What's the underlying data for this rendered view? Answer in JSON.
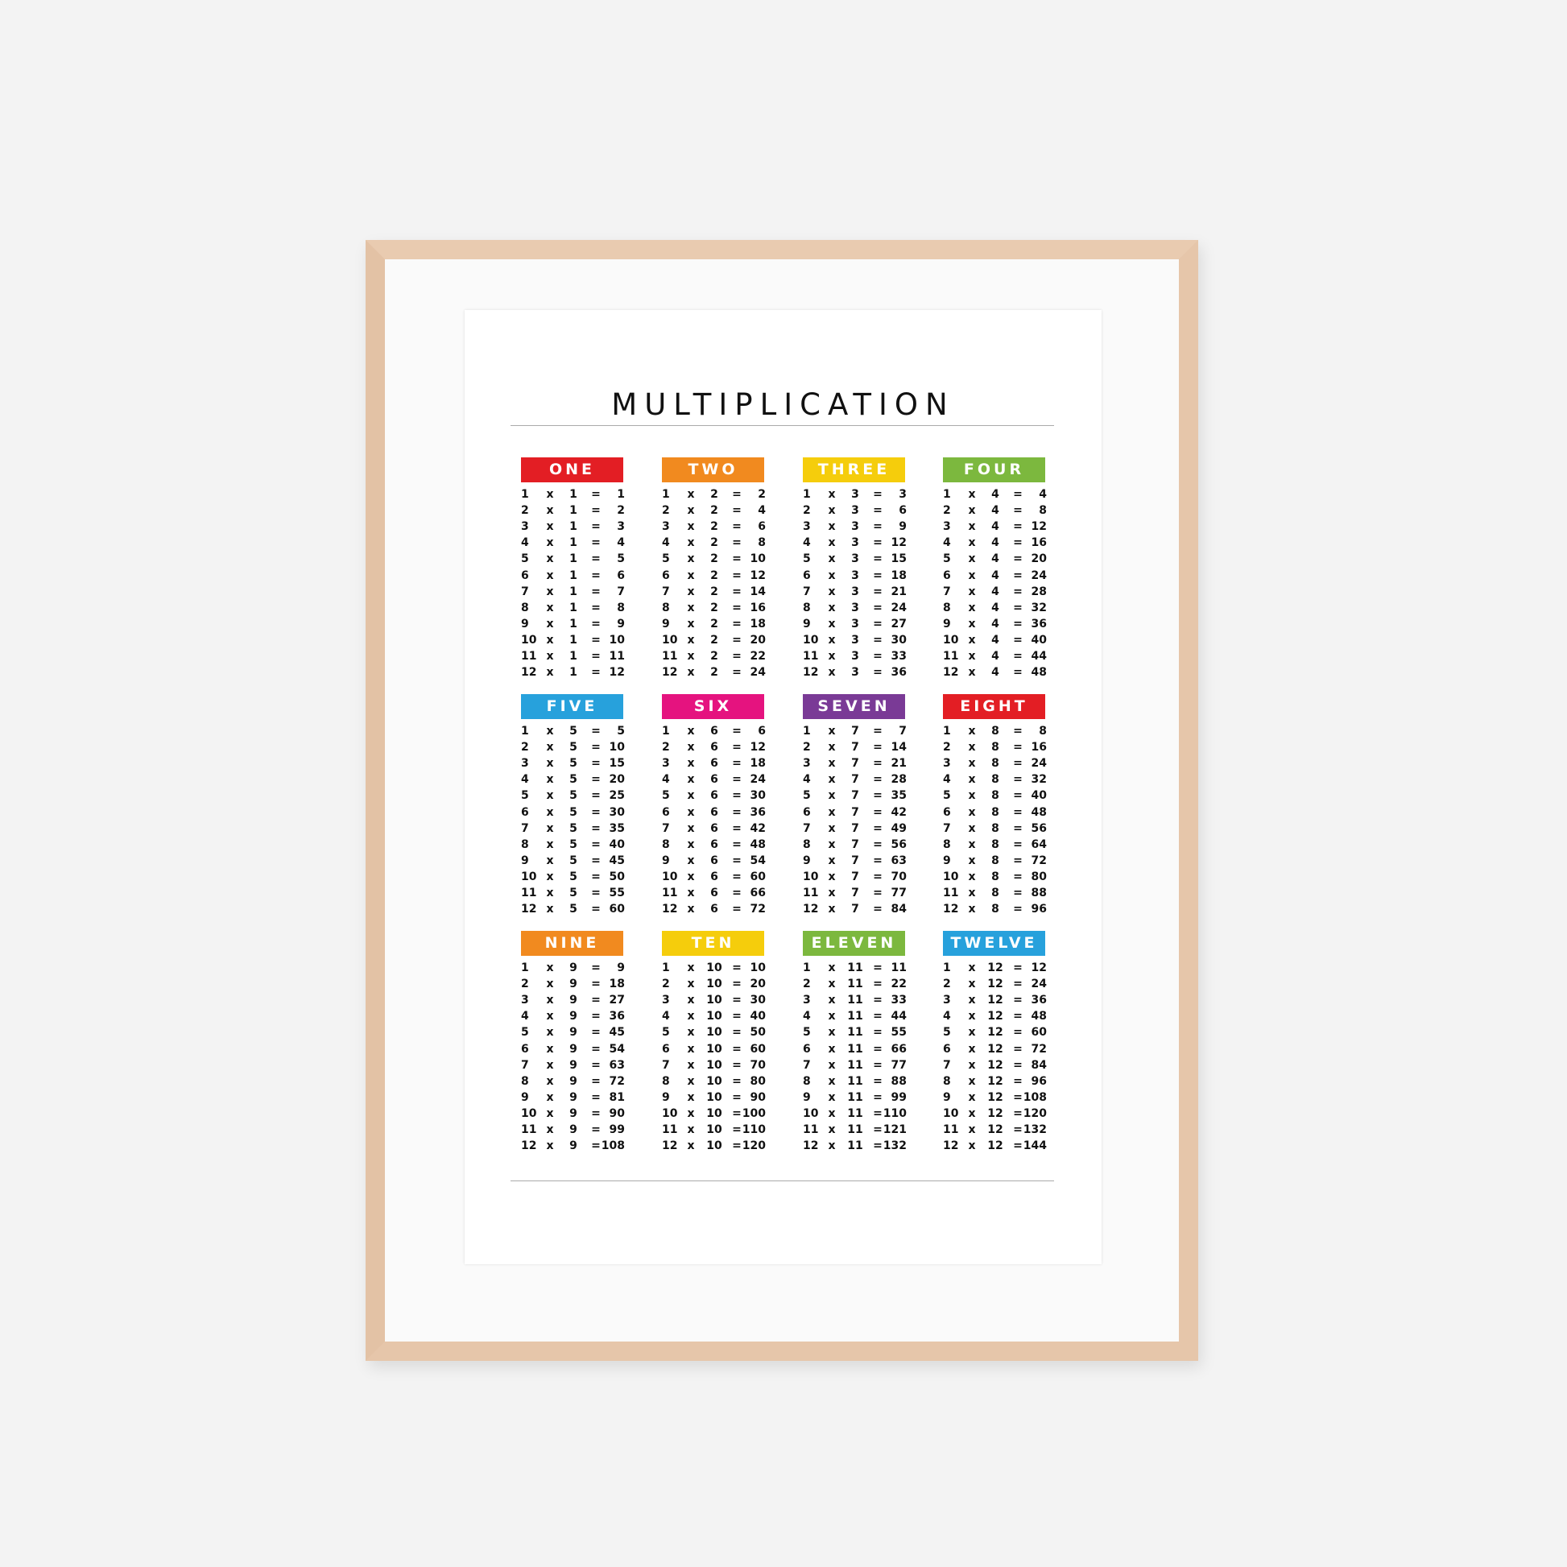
{
  "title": "MULTIPLICATION",
  "tables": [
    {
      "label": "ONE",
      "color": "#e31e24",
      "rows": [
        [
          1,
          "x",
          1,
          "=",
          1
        ],
        [
          2,
          "x",
          1,
          "=",
          2
        ],
        [
          3,
          "x",
          1,
          "=",
          3
        ],
        [
          4,
          "x",
          1,
          "=",
          4
        ],
        [
          5,
          "x",
          1,
          "=",
          5
        ],
        [
          6,
          "x",
          1,
          "=",
          6
        ],
        [
          7,
          "x",
          1,
          "=",
          7
        ],
        [
          8,
          "x",
          1,
          "=",
          8
        ],
        [
          9,
          "x",
          1,
          "=",
          9
        ],
        [
          10,
          "x",
          1,
          "=",
          10
        ],
        [
          11,
          "x",
          1,
          "=",
          11
        ],
        [
          12,
          "x",
          1,
          "=",
          12
        ]
      ]
    },
    {
      "label": "TWO",
      "color": "#f18a1f",
      "rows": [
        [
          1,
          "x",
          2,
          "=",
          2
        ],
        [
          2,
          "x",
          2,
          "=",
          4
        ],
        [
          3,
          "x",
          2,
          "=",
          6
        ],
        [
          4,
          "x",
          2,
          "=",
          8
        ],
        [
          5,
          "x",
          2,
          "=",
          10
        ],
        [
          6,
          "x",
          2,
          "=",
          12
        ],
        [
          7,
          "x",
          2,
          "=",
          14
        ],
        [
          8,
          "x",
          2,
          "=",
          16
        ],
        [
          9,
          "x",
          2,
          "=",
          18
        ],
        [
          10,
          "x",
          2,
          "=",
          20
        ],
        [
          11,
          "x",
          2,
          "=",
          22
        ],
        [
          12,
          "x",
          2,
          "=",
          24
        ]
      ]
    },
    {
      "label": "THREE",
      "color": "#f5cd0c",
      "rows": [
        [
          1,
          "x",
          3,
          "=",
          3
        ],
        [
          2,
          "x",
          3,
          "=",
          6
        ],
        [
          3,
          "x",
          3,
          "=",
          9
        ],
        [
          4,
          "x",
          3,
          "=",
          12
        ],
        [
          5,
          "x",
          3,
          "=",
          15
        ],
        [
          6,
          "x",
          3,
          "=",
          18
        ],
        [
          7,
          "x",
          3,
          "=",
          21
        ],
        [
          8,
          "x",
          3,
          "=",
          24
        ],
        [
          9,
          "x",
          3,
          "=",
          27
        ],
        [
          10,
          "x",
          3,
          "=",
          30
        ],
        [
          11,
          "x",
          3,
          "=",
          33
        ],
        [
          12,
          "x",
          3,
          "=",
          36
        ]
      ]
    },
    {
      "label": "FOUR",
      "color": "#7cb83e",
      "rows": [
        [
          1,
          "x",
          4,
          "=",
          4
        ],
        [
          2,
          "x",
          4,
          "=",
          8
        ],
        [
          3,
          "x",
          4,
          "=",
          12
        ],
        [
          4,
          "x",
          4,
          "=",
          16
        ],
        [
          5,
          "x",
          4,
          "=",
          20
        ],
        [
          6,
          "x",
          4,
          "=",
          24
        ],
        [
          7,
          "x",
          4,
          "=",
          28
        ],
        [
          8,
          "x",
          4,
          "=",
          32
        ],
        [
          9,
          "x",
          4,
          "=",
          36
        ],
        [
          10,
          "x",
          4,
          "=",
          40
        ],
        [
          11,
          "x",
          4,
          "=",
          44
        ],
        [
          12,
          "x",
          4,
          "=",
          48
        ]
      ]
    },
    {
      "label": "FIVE",
      "color": "#27a1dc",
      "rows": [
        [
          1,
          "x",
          5,
          "=",
          5
        ],
        [
          2,
          "x",
          5,
          "=",
          10
        ],
        [
          3,
          "x",
          5,
          "=",
          15
        ],
        [
          4,
          "x",
          5,
          "=",
          20
        ],
        [
          5,
          "x",
          5,
          "=",
          25
        ],
        [
          6,
          "x",
          5,
          "=",
          30
        ],
        [
          7,
          "x",
          5,
          "=",
          35
        ],
        [
          8,
          "x",
          5,
          "=",
          40
        ],
        [
          9,
          "x",
          5,
          "=",
          45
        ],
        [
          10,
          "x",
          5,
          "=",
          50
        ],
        [
          11,
          "x",
          5,
          "=",
          55
        ],
        [
          12,
          "x",
          5,
          "=",
          60
        ]
      ]
    },
    {
      "label": "SIX",
      "color": "#e5137f",
      "rows": [
        [
          1,
          "x",
          6,
          "=",
          6
        ],
        [
          2,
          "x",
          6,
          "=",
          12
        ],
        [
          3,
          "x",
          6,
          "=",
          18
        ],
        [
          4,
          "x",
          6,
          "=",
          24
        ],
        [
          5,
          "x",
          6,
          "=",
          30
        ],
        [
          6,
          "x",
          6,
          "=",
          36
        ],
        [
          7,
          "x",
          6,
          "=",
          42
        ],
        [
          8,
          "x",
          6,
          "=",
          48
        ],
        [
          9,
          "x",
          6,
          "=",
          54
        ],
        [
          10,
          "x",
          6,
          "=",
          60
        ],
        [
          11,
          "x",
          6,
          "=",
          66
        ],
        [
          12,
          "x",
          6,
          "=",
          72
        ]
      ]
    },
    {
      "label": "SEVEN",
      "color": "#7a3a96",
      "rows": [
        [
          1,
          "x",
          7,
          "=",
          7
        ],
        [
          2,
          "x",
          7,
          "=",
          14
        ],
        [
          3,
          "x",
          7,
          "=",
          21
        ],
        [
          4,
          "x",
          7,
          "=",
          28
        ],
        [
          5,
          "x",
          7,
          "=",
          35
        ],
        [
          6,
          "x",
          7,
          "=",
          42
        ],
        [
          7,
          "x",
          7,
          "=",
          49
        ],
        [
          8,
          "x",
          7,
          "=",
          56
        ],
        [
          9,
          "x",
          7,
          "=",
          63
        ],
        [
          10,
          "x",
          7,
          "=",
          70
        ],
        [
          11,
          "x",
          7,
          "=",
          77
        ],
        [
          12,
          "x",
          7,
          "=",
          84
        ]
      ]
    },
    {
      "label": "EIGHT",
      "color": "#e31e24",
      "rows": [
        [
          1,
          "x",
          8,
          "=",
          8
        ],
        [
          2,
          "x",
          8,
          "=",
          16
        ],
        [
          3,
          "x",
          8,
          "=",
          24
        ],
        [
          4,
          "x",
          8,
          "=",
          32
        ],
        [
          5,
          "x",
          8,
          "=",
          40
        ],
        [
          6,
          "x",
          8,
          "=",
          48
        ],
        [
          7,
          "x",
          8,
          "=",
          56
        ],
        [
          8,
          "x",
          8,
          "=",
          64
        ],
        [
          9,
          "x",
          8,
          "=",
          72
        ],
        [
          10,
          "x",
          8,
          "=",
          80
        ],
        [
          11,
          "x",
          8,
          "=",
          88
        ],
        [
          12,
          "x",
          8,
          "=",
          96
        ]
      ]
    },
    {
      "label": "NINE",
      "color": "#f18a1f",
      "rows": [
        [
          1,
          "x",
          9,
          "=",
          9
        ],
        [
          2,
          "x",
          9,
          "=",
          18
        ],
        [
          3,
          "x",
          9,
          "=",
          27
        ],
        [
          4,
          "x",
          9,
          "=",
          36
        ],
        [
          5,
          "x",
          9,
          "=",
          45
        ],
        [
          6,
          "x",
          9,
          "=",
          54
        ],
        [
          7,
          "x",
          9,
          "=",
          63
        ],
        [
          8,
          "x",
          9,
          "=",
          72
        ],
        [
          9,
          "x",
          9,
          "=",
          81
        ],
        [
          10,
          "x",
          9,
          "=",
          90
        ],
        [
          11,
          "x",
          9,
          "=",
          99
        ],
        [
          12,
          "x",
          9,
          "=",
          108
        ]
      ]
    },
    {
      "label": "TEN",
      "color": "#f5cd0c",
      "rows": [
        [
          1,
          "x",
          10,
          "=",
          10
        ],
        [
          2,
          "x",
          10,
          "=",
          20
        ],
        [
          3,
          "x",
          10,
          "=",
          30
        ],
        [
          4,
          "x",
          10,
          "=",
          40
        ],
        [
          5,
          "x",
          10,
          "=",
          50
        ],
        [
          6,
          "x",
          10,
          "=",
          60
        ],
        [
          7,
          "x",
          10,
          "=",
          70
        ],
        [
          8,
          "x",
          10,
          "=",
          80
        ],
        [
          9,
          "x",
          10,
          "=",
          90
        ],
        [
          10,
          "x",
          10,
          "=",
          100
        ],
        [
          11,
          "x",
          10,
          "=",
          110
        ],
        [
          12,
          "x",
          10,
          "=",
          120
        ]
      ]
    },
    {
      "label": "ELEVEN",
      "color": "#7cb83e",
      "rows": [
        [
          1,
          "x",
          11,
          "=",
          11
        ],
        [
          2,
          "x",
          11,
          "=",
          22
        ],
        [
          3,
          "x",
          11,
          "=",
          33
        ],
        [
          4,
          "x",
          11,
          "=",
          44
        ],
        [
          5,
          "x",
          11,
          "=",
          55
        ],
        [
          6,
          "x",
          11,
          "=",
          66
        ],
        [
          7,
          "x",
          11,
          "=",
          77
        ],
        [
          8,
          "x",
          11,
          "=",
          88
        ],
        [
          9,
          "x",
          11,
          "=",
          99
        ],
        [
          10,
          "x",
          11,
          "=",
          110
        ],
        [
          11,
          "x",
          11,
          "=",
          121
        ],
        [
          12,
          "x",
          11,
          "=",
          132
        ]
      ]
    },
    {
      "label": "TWELVE",
      "color": "#27a1dc",
      "rows": [
        [
          1,
          "x",
          12,
          "=",
          12
        ],
        [
          2,
          "x",
          12,
          "=",
          24
        ],
        [
          3,
          "x",
          12,
          "=",
          36
        ],
        [
          4,
          "x",
          12,
          "=",
          48
        ],
        [
          5,
          "x",
          12,
          "=",
          60
        ],
        [
          6,
          "x",
          12,
          "=",
          72
        ],
        [
          7,
          "x",
          12,
          "=",
          84
        ],
        [
          8,
          "x",
          12,
          "=",
          96
        ],
        [
          9,
          "x",
          12,
          "=",
          108
        ],
        [
          10,
          "x",
          12,
          "=",
          120
        ],
        [
          11,
          "x",
          12,
          "=",
          132
        ],
        [
          12,
          "x",
          12,
          "=",
          144
        ]
      ]
    }
  ]
}
